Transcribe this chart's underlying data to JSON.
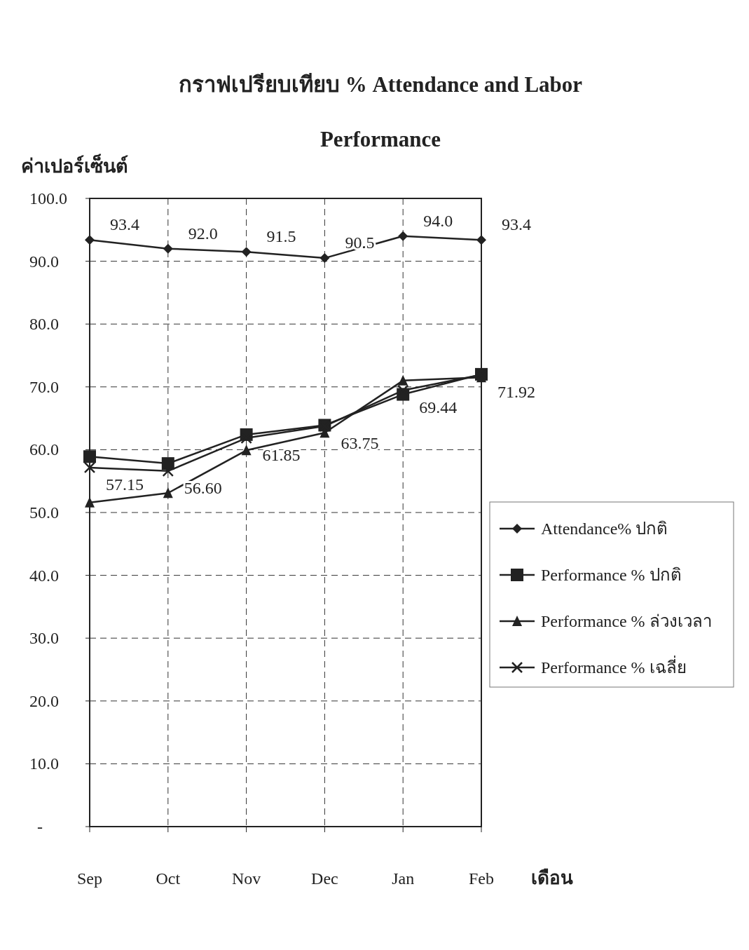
{
  "chart_data": {
    "type": "line",
    "title": "กราฟเปรียบเทียบ % Attendance and Labor Performance",
    "ylabel": "ค่าเปอร์เซ็นต์",
    "xlabel": "เดือน",
    "categories": [
      "Sep",
      "Oct",
      "Nov",
      "Dec",
      "Jan",
      "Feb"
    ],
    "series": [
      {
        "name": "Attendance% ปกติ",
        "color": "#222222",
        "marker": "diamond",
        "values": [
          93.4,
          92.0,
          91.5,
          90.5,
          94.0,
          93.4
        ],
        "value_labels": [
          "93.4",
          "92.0",
          "91.5",
          "90.5",
          "94.0",
          "93.4"
        ]
      },
      {
        "name": "Performance % ปกติ",
        "color": "#222222",
        "marker": "square",
        "values": [
          58.9,
          57.8,
          62.4,
          63.9,
          68.8,
          72.0
        ]
      },
      {
        "name": "Performance % ล่วงเวลา",
        "color": "#222222",
        "marker": "triangle",
        "values": [
          51.6,
          53.1,
          59.9,
          62.7,
          71.0,
          71.5
        ]
      },
      {
        "name": "Performance % เฉลี่ย",
        "color": "#222222",
        "marker": "cross",
        "values": [
          57.15,
          56.6,
          61.85,
          63.75,
          69.44,
          71.92
        ],
        "value_labels": [
          "57.15",
          "56.60",
          "61.85",
          "63.75",
          "69.44",
          "71.92"
        ]
      }
    ],
    "ylim": [
      0,
      100
    ],
    "yticks": [
      {
        "value": 0,
        "label": "-"
      },
      {
        "value": 10,
        "label": "10.0"
      },
      {
        "value": 20,
        "label": "20.0"
      },
      {
        "value": 30,
        "label": "30.0"
      },
      {
        "value": 40,
        "label": "40.0"
      },
      {
        "value": 50,
        "label": "50.0"
      },
      {
        "value": 60,
        "label": "60.0"
      },
      {
        "value": 70,
        "label": "70.0"
      },
      {
        "value": 80,
        "label": "80.0"
      },
      {
        "value": 90,
        "label": "90.0"
      },
      {
        "value": 100,
        "label": "100.0"
      }
    ],
    "grid": true,
    "legend": "right",
    "line_style": "solid"
  }
}
